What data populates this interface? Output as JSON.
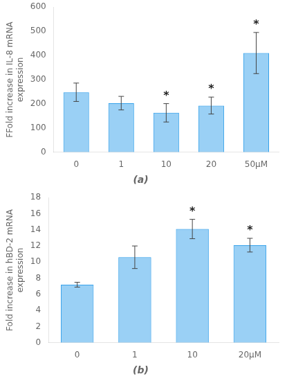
{
  "chart_data": [
    {
      "type": "bar",
      "title": "(a)",
      "categories": [
        "0",
        "1",
        "10",
        "20",
        "50μM"
      ],
      "values": [
        248,
        203,
        163,
        193,
        410
      ],
      "errors": [
        38,
        28,
        38,
        35,
        85
      ],
      "annotations": [
        {
          "category": "10",
          "text": "*"
        },
        {
          "category": "20",
          "text": "*"
        },
        {
          "category": "50μM",
          "text": "*"
        }
      ],
      "ylabel": "FFold increase in IL-8 mRNA\nexpression",
      "ylim": [
        0,
        600
      ],
      "yticks": [
        0,
        100,
        200,
        300,
        400,
        500,
        600
      ],
      "grid": false
    },
    {
      "type": "bar",
      "title": "(b)",
      "categories": [
        "0",
        "1",
        "10",
        "20μM"
      ],
      "values": [
        7.2,
        10.6,
        14.1,
        12.1
      ],
      "errors": [
        0.3,
        1.4,
        1.2,
        0.85
      ],
      "annotations": [
        {
          "category": "10",
          "text": "*"
        },
        {
          "category": "20μM",
          "text": "*"
        }
      ],
      "ylabel": "Fold increase in hBD-2 mRNA\nexpression",
      "ylim": [
        0,
        18
      ],
      "yticks": [
        0,
        2,
        4,
        6,
        8,
        10,
        12,
        14,
        16,
        18
      ],
      "grid": false
    }
  ]
}
